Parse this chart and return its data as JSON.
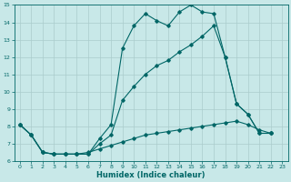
{
  "xlabel": "Humidex (Indice chaleur)",
  "xlim": [
    -0.5,
    23.5
  ],
  "ylim": [
    6,
    15
  ],
  "yticks": [
    6,
    7,
    8,
    9,
    10,
    11,
    12,
    13,
    14,
    15
  ],
  "xticks": [
    0,
    1,
    2,
    3,
    4,
    5,
    6,
    7,
    8,
    9,
    10,
    11,
    12,
    13,
    14,
    15,
    16,
    17,
    18,
    19,
    20,
    21,
    22,
    23
  ],
  "bg_color": "#c8e8e8",
  "line_color": "#006666",
  "grid_color": "#aacccc",
  "line1_x": [
    0,
    1,
    2,
    3,
    4,
    5,
    6,
    7,
    8,
    9,
    10,
    11,
    12,
    13,
    14,
    15,
    16,
    17,
    18,
    19,
    20,
    21,
    22
  ],
  "line1_y": [
    8.1,
    7.5,
    6.5,
    6.4,
    6.4,
    6.4,
    6.4,
    7.3,
    8.1,
    12.5,
    13.8,
    14.5,
    14.1,
    13.8,
    14.6,
    15.0,
    14.6,
    14.5,
    12.0,
    9.3,
    8.7,
    7.6,
    7.6
  ],
  "line2_x": [
    0,
    1,
    2,
    3,
    4,
    5,
    6,
    7,
    8,
    9,
    10,
    11,
    12,
    13,
    14,
    15,
    16,
    17,
    18,
    19,
    20,
    21,
    22
  ],
  "line2_y": [
    8.1,
    7.5,
    6.5,
    6.4,
    6.4,
    6.4,
    6.4,
    7.0,
    7.5,
    9.5,
    10.3,
    11.0,
    11.5,
    11.8,
    12.3,
    12.7,
    13.2,
    13.8,
    12.0,
    9.3,
    8.7,
    7.6,
    7.6
  ],
  "line3_x": [
    0,
    1,
    2,
    3,
    4,
    5,
    6,
    7,
    8,
    9,
    10,
    11,
    12,
    13,
    14,
    15,
    16,
    17,
    18,
    19,
    20,
    21,
    22
  ],
  "line3_y": [
    8.1,
    7.5,
    6.5,
    6.4,
    6.4,
    6.4,
    6.5,
    6.7,
    6.9,
    7.1,
    7.3,
    7.5,
    7.6,
    7.7,
    7.8,
    7.9,
    8.0,
    8.1,
    8.2,
    8.3,
    8.1,
    7.8,
    7.6
  ]
}
